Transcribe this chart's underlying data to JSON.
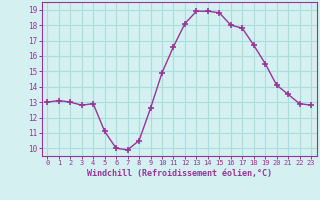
{
  "x": [
    0,
    1,
    2,
    3,
    4,
    5,
    6,
    7,
    8,
    9,
    10,
    11,
    12,
    13,
    14,
    15,
    16,
    17,
    18,
    19,
    20,
    21,
    22,
    23
  ],
  "y": [
    13,
    13.1,
    13,
    12.8,
    12.9,
    11.1,
    10.0,
    9.9,
    10.5,
    12.6,
    14.9,
    16.6,
    18.1,
    18.9,
    18.9,
    18.8,
    18.0,
    17.8,
    16.7,
    15.5,
    14.1,
    13.5,
    12.9,
    12.8
  ],
  "line_color": "#993399",
  "marker": "+",
  "marker_size": 4,
  "bg_color": "#d4f0f0",
  "grid_color": "#aadddd",
  "xlabel": "Windchill (Refroidissement éolien,°C)",
  "xlabel_color": "#993399",
  "tick_color": "#993399",
  "ylim": [
    9.5,
    19.5
  ],
  "xlim": [
    -0.5,
    23.5
  ],
  "yticks": [
    10,
    11,
    12,
    13,
    14,
    15,
    16,
    17,
    18,
    19
  ],
  "xticks": [
    0,
    1,
    2,
    3,
    4,
    5,
    6,
    7,
    8,
    9,
    10,
    11,
    12,
    13,
    14,
    15,
    16,
    17,
    18,
    19,
    20,
    21,
    22,
    23
  ]
}
